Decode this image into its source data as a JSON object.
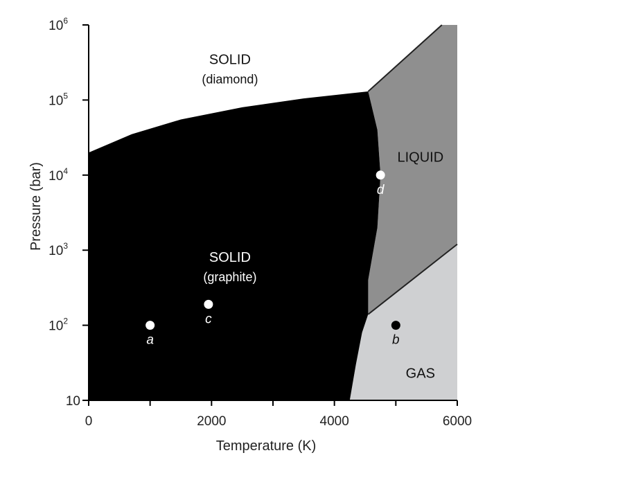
{
  "chart_data": {
    "type": "phase-diagram",
    "xlabel": "Temperature (K)",
    "ylabel": "Pressure (bar)",
    "xlim": [
      0,
      6000
    ],
    "ylim": [
      10,
      1000000
    ],
    "y_scale": "log",
    "x_ticks": [
      {
        "value": 0,
        "label": "0"
      },
      {
        "value": 1000,
        "label": ""
      },
      {
        "value": 2000,
        "label": "2000"
      },
      {
        "value": 3000,
        "label": ""
      },
      {
        "value": 4000,
        "label": "4000"
      },
      {
        "value": 5000,
        "label": ""
      },
      {
        "value": 6000,
        "label": "6000"
      }
    ],
    "y_ticks": [
      {
        "value": 10,
        "base": "10",
        "exp": ""
      },
      {
        "value": 100,
        "base": "10",
        "exp": "2"
      },
      {
        "value": 1000,
        "base": "10",
        "exp": "3"
      },
      {
        "value": 10000,
        "base": "10",
        "exp": "4"
      },
      {
        "value": 100000,
        "base": "10",
        "exp": "5"
      },
      {
        "value": 1000000,
        "base": "10",
        "exp": "6"
      }
    ],
    "regions": [
      {
        "name": "diamond",
        "label": "SOLID",
        "sublabel": "(diamond)",
        "color": "#ffffff",
        "text_color": "#111111",
        "label_at": [
          2300,
          300000
        ]
      },
      {
        "name": "graphite",
        "label": "SOLID",
        "sublabel": "(graphite)",
        "color": "#000000",
        "text_color": "#ffffff",
        "label_at": [
          2300,
          700
        ]
      },
      {
        "name": "liquid",
        "label": "LIQUID",
        "sublabel": "",
        "color": "#8f8f8f",
        "text_color": "#111111",
        "label_at": [
          5400,
          15000
        ]
      },
      {
        "name": "gas",
        "label": "GAS",
        "sublabel": "",
        "color": "#cfd0d2",
        "text_color": "#111111",
        "label_at": [
          5400,
          20
        ]
      }
    ],
    "boundaries": {
      "diamond_graphite": [
        [
          0,
          20000
        ],
        [
          700,
          35000
        ],
        [
          1500,
          55000
        ],
        [
          2500,
          80000
        ],
        [
          3500,
          105000
        ],
        [
          4550,
          130000
        ]
      ],
      "graphite_liquid": [
        [
          4550,
          130000
        ],
        [
          4700,
          40000
        ],
        [
          4750,
          10000
        ],
        [
          4700,
          2000
        ],
        [
          4550,
          400
        ],
        [
          4550,
          140
        ]
      ],
      "graphite_gas": [
        [
          4550,
          140
        ],
        [
          4450,
          80
        ],
        [
          4350,
          30
        ],
        [
          4250,
          10
        ]
      ],
      "liquid_gas": [
        [
          4550,
          140
        ],
        [
          6000,
          1200
        ]
      ],
      "liquid_diamond": [
        [
          4550,
          130000
        ],
        [
          5750,
          1000000
        ],
        [
          6000,
          1000000
        ]
      ]
    },
    "points": [
      {
        "label": "a",
        "x": 1000,
        "y": 100,
        "fill": "#ffffff",
        "label_color": "#ffffff"
      },
      {
        "label": "c",
        "x": 1950,
        "y": 190,
        "fill": "#ffffff",
        "label_color": "#ffffff"
      },
      {
        "label": "d",
        "x": 4750,
        "y": 10000,
        "fill": "#ffffff",
        "label_color": "#ffffff"
      },
      {
        "label": "b",
        "x": 5000,
        "y": 100,
        "fill": "#000000",
        "label_color": "#111111"
      }
    ]
  }
}
